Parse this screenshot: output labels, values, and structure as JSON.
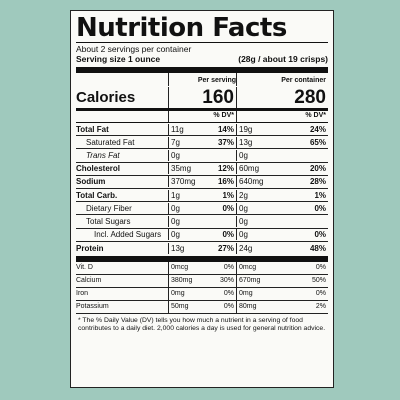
{
  "title": "Nutrition Facts",
  "servings_per_container": "About 2 servings per container",
  "serving_size_label": "Serving size 1 ounce",
  "serving_size_value": "(28g / about 19 crisps)",
  "per_serving_label": "Per serving",
  "per_container_label": "Per container",
  "calories_label": "Calories",
  "calories_serving": "160",
  "calories_container": "280",
  "dv_header": "% DV*",
  "nutrients": [
    {
      "name": "Total Fat",
      "s_amt": "11g",
      "s_dv": "14%",
      "c_amt": "19g",
      "c_dv": "24%"
    },
    {
      "name": "Saturated Fat",
      "s_amt": "7g",
      "s_dv": "37%",
      "c_amt": "13g",
      "c_dv": "65%"
    },
    {
      "name": "Trans Fat",
      "s_amt": "0g",
      "s_dv": "",
      "c_amt": "0g",
      "c_dv": ""
    },
    {
      "name": "Cholesterol",
      "s_amt": "35mg",
      "s_dv": "12%",
      "c_amt": "60mg",
      "c_dv": "20%"
    },
    {
      "name": "Sodium",
      "s_amt": "370mg",
      "s_dv": "16%",
      "c_amt": "640mg",
      "c_dv": "28%"
    },
    {
      "name": "Total Carb.",
      "s_amt": "1g",
      "s_dv": "1%",
      "c_amt": "2g",
      "c_dv": "1%"
    },
    {
      "name": "Dietary Fiber",
      "s_amt": "0g",
      "s_dv": "0%",
      "c_amt": "0g",
      "c_dv": "0%"
    },
    {
      "name": "Total Sugars",
      "s_amt": "0g",
      "s_dv": "",
      "c_amt": "0g",
      "c_dv": ""
    },
    {
      "name": "Incl. Added Sugars",
      "s_amt": "0g",
      "s_dv": "0%",
      "c_amt": "0g",
      "c_dv": "0%"
    },
    {
      "name": "Protein",
      "s_amt": "13g",
      "s_dv": "27%",
      "c_amt": "24g",
      "c_dv": "48%"
    }
  ],
  "vitamins": [
    {
      "name": "Vit. D",
      "s_amt": "0mcg",
      "s_dv": "0%",
      "c_amt": "0mcg",
      "c_dv": "0%"
    },
    {
      "name": "Calcium",
      "s_amt": "380mg",
      "s_dv": "30%",
      "c_amt": "670mg",
      "c_dv": "50%"
    },
    {
      "name": "Iron",
      "s_amt": "0mg",
      "s_dv": "0%",
      "c_amt": "0mg",
      "c_dv": "0%"
    },
    {
      "name": "Potassium",
      "s_amt": "50mg",
      "s_dv": "0%",
      "c_amt": "80mg",
      "c_dv": "2%"
    }
  ],
  "footnote": "* The % Daily Value (DV) tells you how much a nutrient in a serving of food contributes to a daily diet. 2,000 calories a day is used for general nutrition advice."
}
